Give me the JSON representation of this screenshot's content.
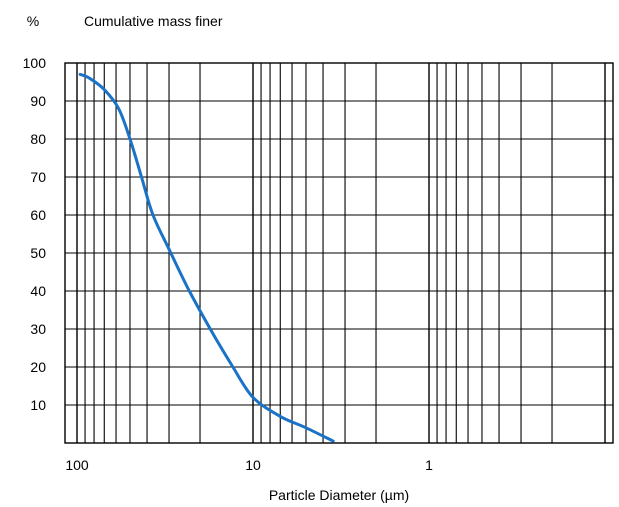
{
  "chart_data": {
    "type": "line",
    "x_scale": "log",
    "x_reversed": true,
    "xlabel": "Particle Diameter (µm)",
    "ylabel_unit": "%",
    "ylabel": "Cumulative mass finer",
    "xlim": [
      104,
      0.1
    ],
    "ylim": [
      0,
      100
    ],
    "x_ticks": [
      100,
      10,
      1
    ],
    "x_tick_labels": [
      "100",
      "10",
      "1"
    ],
    "y_ticks": [
      10,
      20,
      30,
      40,
      50,
      60,
      70,
      80,
      90,
      100
    ],
    "y_tick_labels": [
      "10",
      "20",
      "30",
      "40",
      "50",
      "60",
      "70",
      "80",
      "90",
      "100"
    ],
    "grid": true,
    "line_color": "#1a73c6",
    "series": [
      {
        "x": [
          96,
          85,
          70,
          58,
          50,
          43,
          37,
          30,
          23,
          17,
          13,
          10,
          7,
          5,
          3.5
        ],
        "y": [
          97,
          96,
          93,
          88,
          80,
          70,
          60,
          51,
          40,
          29,
          20,
          12,
          7,
          4,
          0.5
        ]
      }
    ]
  }
}
